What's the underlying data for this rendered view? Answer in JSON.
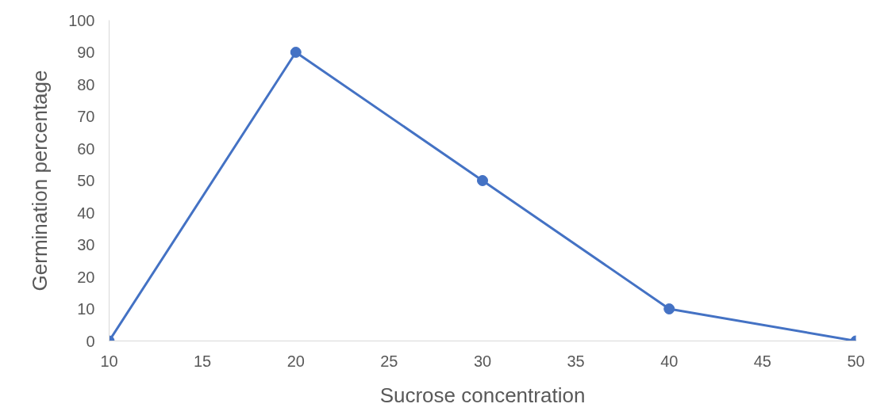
{
  "chart_data": {
    "type": "line",
    "xlabel": "Sucrose concentration",
    "ylabel": "Germination percentage",
    "x": [
      10,
      20,
      30,
      40,
      50
    ],
    "series": [
      {
        "color": "#4472c4",
        "values": [
          0,
          90,
          50,
          10,
          0
        ]
      }
    ],
    "xlim": [
      10,
      50
    ],
    "xticks": [
      10,
      15,
      20,
      25,
      30,
      35,
      40,
      45,
      50
    ],
    "ylim": [
      0,
      100
    ],
    "yticks": [
      0,
      10,
      20,
      30,
      40,
      50,
      60,
      70,
      80,
      90,
      100
    ],
    "grid": false,
    "marker": "circle",
    "line_style": "solid"
  }
}
